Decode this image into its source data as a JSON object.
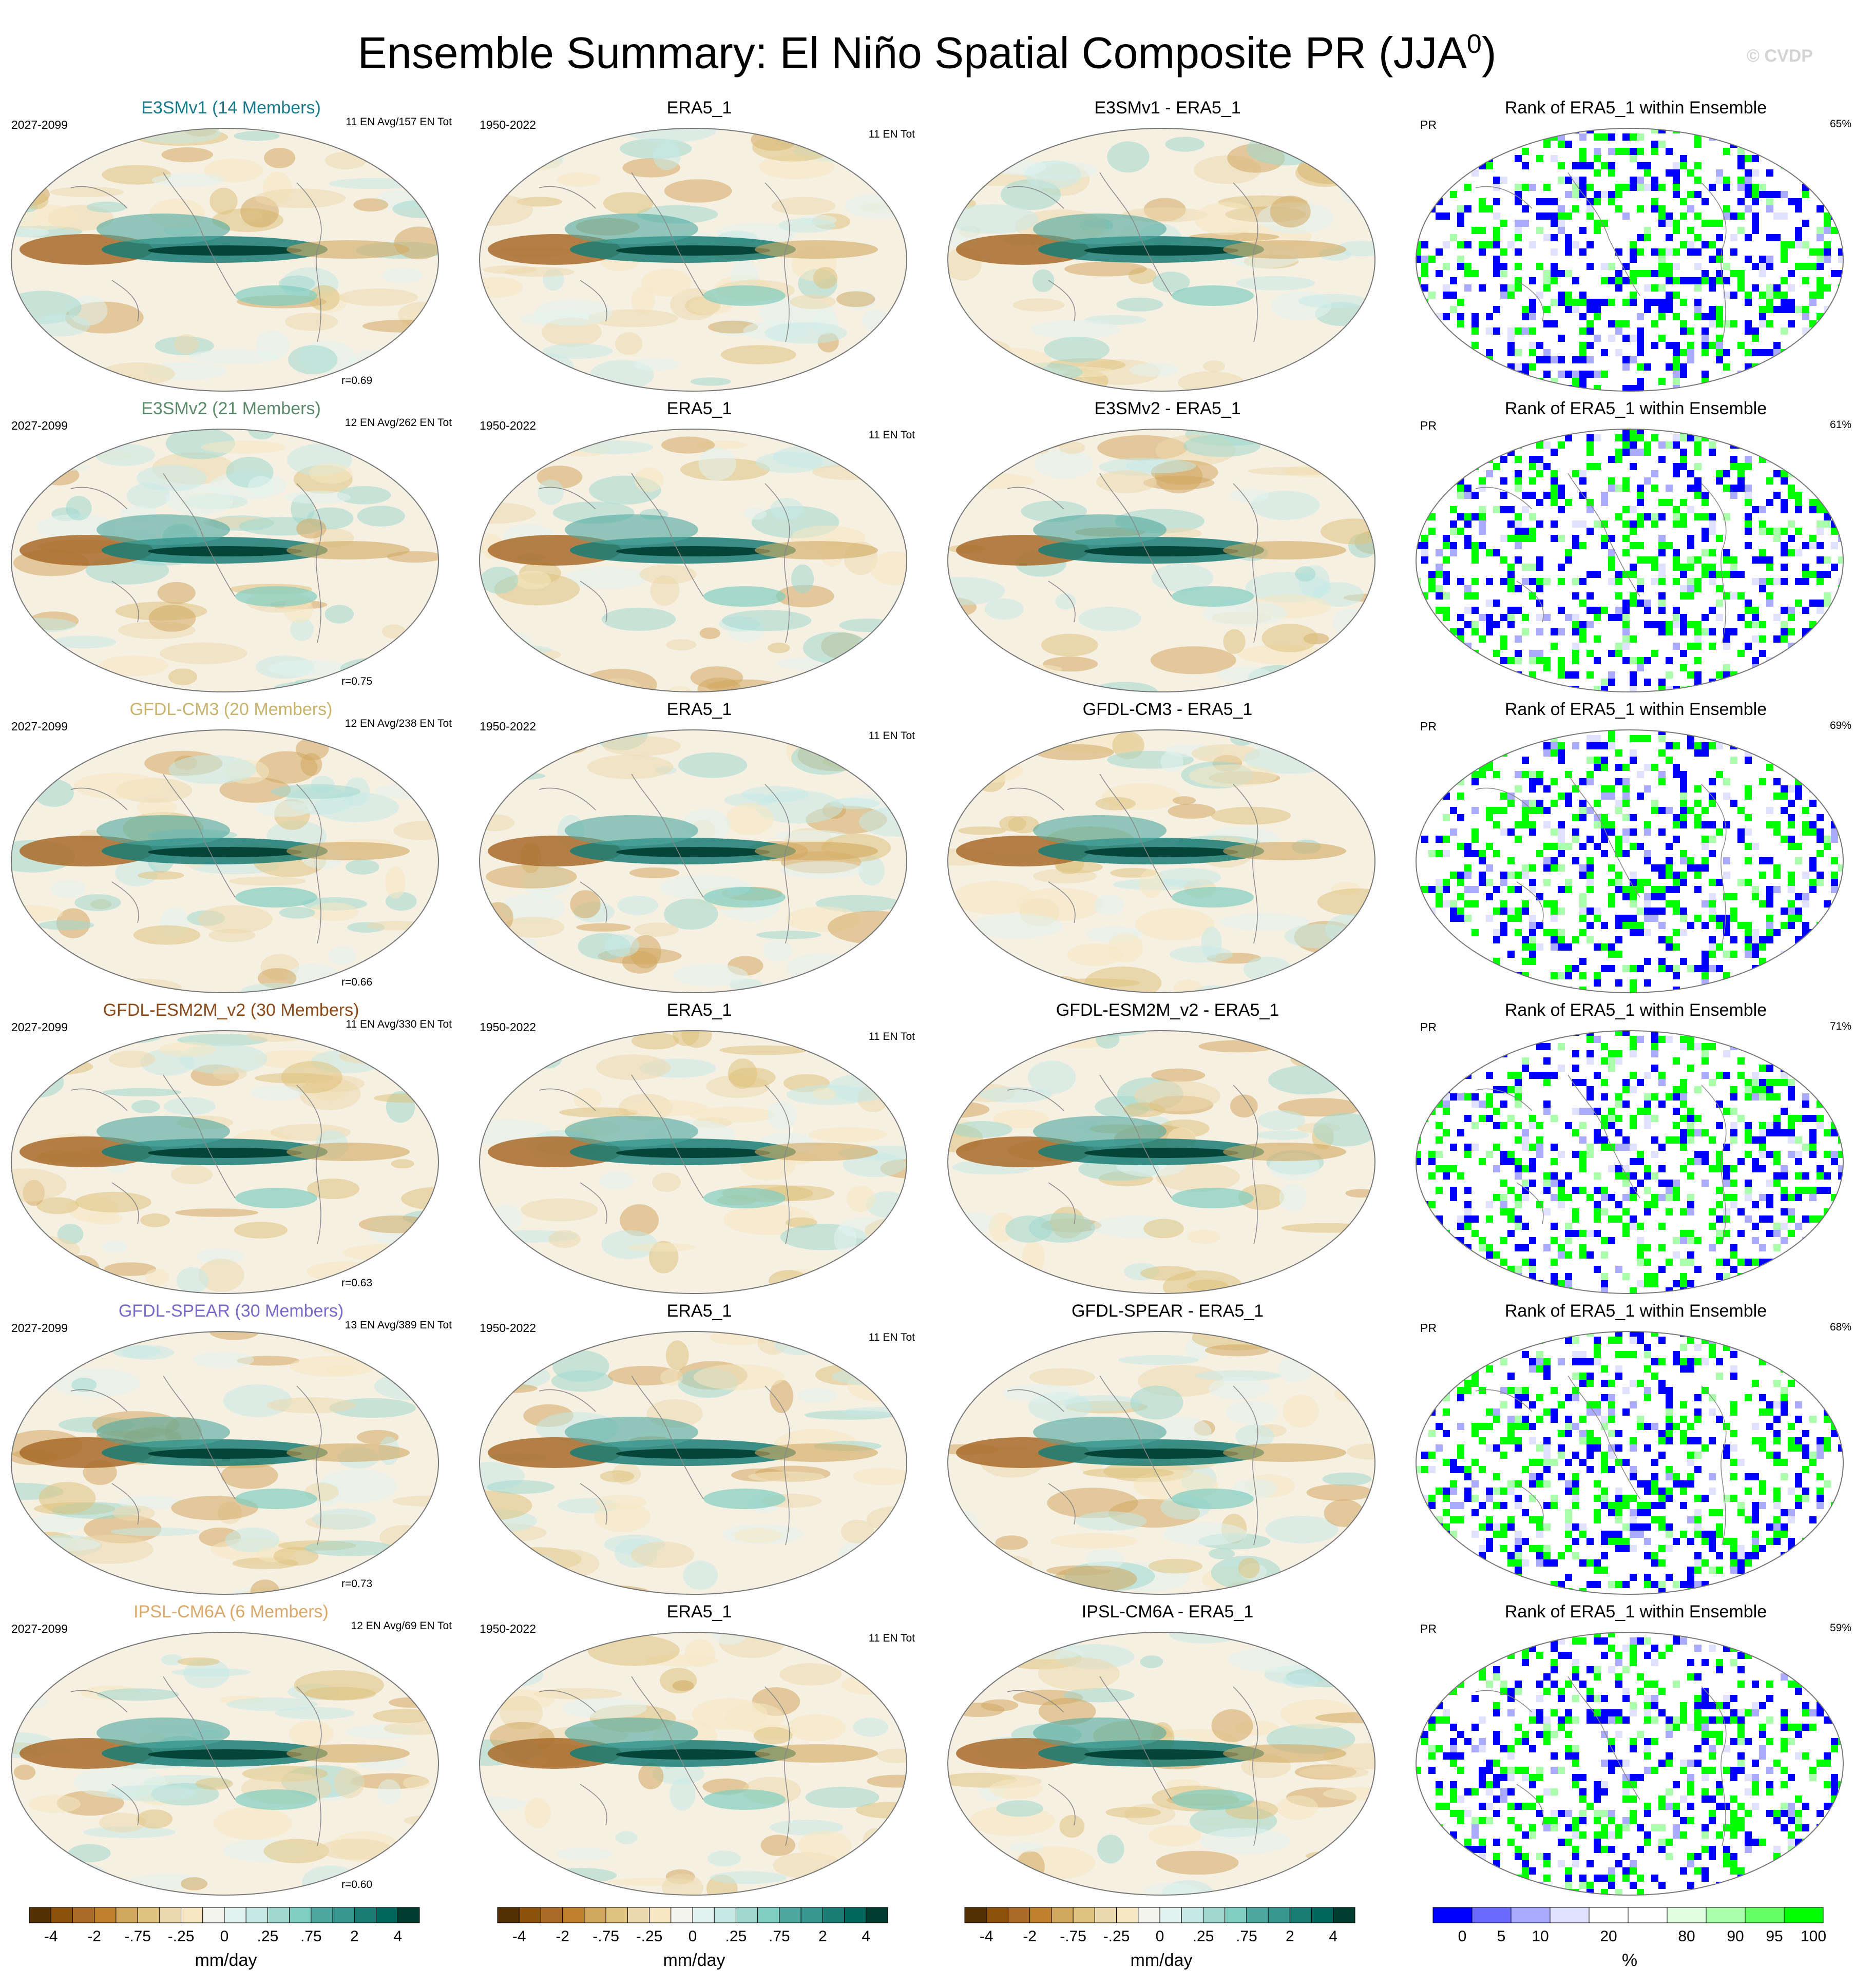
{
  "title": {
    "prefix": "Ensemble Summary: El Niño Spatial Composite PR (JJA",
    "sup": "0",
    "suffix": ")"
  },
  "watermark": "© CVDP",
  "chart_data": {
    "type": "heatmap",
    "title": "Ensemble Summary: El Niño Spatial Composite PR (JJA0)",
    "variable": "PR",
    "season": "JJA",
    "observation": "ERA5_1",
    "observation_years": "1950-2022",
    "observation_info": "11 EN Tot",
    "rank_title": "Rank of ERA5_1 within Ensemble",
    "rows": [
      {
        "model": "E3SMv1",
        "model_title": "E3SMv1 (14 Members)",
        "title_color": "#1a7a8c",
        "years": "2027-2099",
        "info": "11 EN Avg/157 EN Tot",
        "r": "r=0.69",
        "diff_title": "E3SMv1 - ERA5_1",
        "rank_pct": "65%"
      },
      {
        "model": "E3SMv2",
        "model_title": "E3SMv2 (21 Members)",
        "title_color": "#5b8a6a",
        "years": "2027-2099",
        "info": "12 EN Avg/262 EN Tot",
        "r": "r=0.75",
        "diff_title": "E3SMv2 - ERA5_1",
        "rank_pct": "61%"
      },
      {
        "model": "GFDL-CM3",
        "model_title": "GFDL-CM3 (20 Members)",
        "title_color": "#c9b36a",
        "years": "2027-2099",
        "info": "12 EN Avg/238 EN Tot",
        "r": "r=0.66",
        "diff_title": "GFDL-CM3 - ERA5_1",
        "rank_pct": "69%"
      },
      {
        "model": "GFDL-ESM2M_v2",
        "model_title": "GFDL-ESM2M_v2 (30 Members)",
        "title_color": "#8a4a1a",
        "years": "2027-2099",
        "info": "11 EN Avg/330 EN Tot",
        "r": "r=0.63",
        "diff_title": "GFDL-ESM2M_v2 - ERA5_1",
        "rank_pct": "71%"
      },
      {
        "model": "GFDL-SPEAR",
        "model_title": "GFDL-SPEAR (30 Members)",
        "title_color": "#7b68c8",
        "years": "2027-2099",
        "info": "13 EN Avg/389 EN Tot",
        "r": "r=0.73",
        "diff_title": "GFDL-SPEAR - ERA5_1",
        "rank_pct": "68%"
      },
      {
        "model": "IPSL-CM6A",
        "model_title": "IPSL-CM6A (6 Members)",
        "title_color": "#d9a86a",
        "years": "2027-2099",
        "info": "12 EN Avg/69 EN Tot",
        "r": "r=0.60",
        "diff_title": "IPSL-CM6A - ERA5_1",
        "rank_pct": "59%"
      }
    ],
    "pr_colorbar": {
      "unit": "mm/day",
      "tick_labels": [
        "-4",
        "-2",
        "-.75",
        "-.25",
        "0",
        ".25",
        ".75",
        "2",
        "4"
      ],
      "colors": [
        "#543005",
        "#8c510a",
        "#a86b2a",
        "#bf812d",
        "#d2a860",
        "#dfc27d",
        "#ecd9ad",
        "#f6e8c3",
        "#f5f5f0",
        "#e2f2ef",
        "#c7eae5",
        "#a0d8cf",
        "#80cdc1",
        "#4fa8a0",
        "#35978f",
        "#1a7d74",
        "#01665e",
        "#003c30"
      ]
    },
    "rank_colorbar": {
      "unit": "%",
      "tick_labels": [
        "0",
        "5",
        "10",
        "20",
        "80",
        "90",
        "95",
        "100"
      ],
      "colors": [
        "#0000ff",
        "#6a6aff",
        "#aaaaff",
        "#e0e0ff",
        "#ffffff",
        "#ffffff",
        "#e0ffe0",
        "#aaffaa",
        "#66ff66",
        "#00ff00"
      ]
    }
  }
}
